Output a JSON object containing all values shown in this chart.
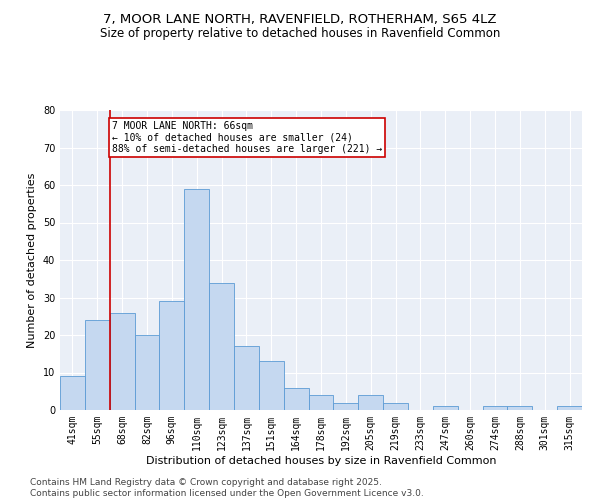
{
  "title1": "7, MOOR LANE NORTH, RAVENFIELD, ROTHERHAM, S65 4LZ",
  "title2": "Size of property relative to detached houses in Ravenfield Common",
  "xlabel": "Distribution of detached houses by size in Ravenfield Common",
  "ylabel": "Number of detached properties",
  "categories": [
    "41sqm",
    "55sqm",
    "68sqm",
    "82sqm",
    "96sqm",
    "110sqm",
    "123sqm",
    "137sqm",
    "151sqm",
    "164sqm",
    "178sqm",
    "192sqm",
    "205sqm",
    "219sqm",
    "233sqm",
    "247sqm",
    "260sqm",
    "274sqm",
    "288sqm",
    "301sqm",
    "315sqm"
  ],
  "values": [
    9,
    24,
    26,
    20,
    29,
    59,
    34,
    17,
    13,
    6,
    4,
    2,
    4,
    2,
    0,
    1,
    0,
    1,
    1,
    0,
    1
  ],
  "bar_color": "#c5d8f0",
  "bar_edge_color": "#5b9bd5",
  "annotation_text_line1": "7 MOOR LANE NORTH: 66sqm",
  "annotation_text_line2": "← 10% of detached houses are smaller (24)",
  "annotation_text_line3": "88% of semi-detached houses are larger (221) →",
  "annotation_box_color": "#ffffff",
  "annotation_box_edge": "#cc0000",
  "vline_x": 1.5,
  "vline_color": "#cc0000",
  "ylim": [
    0,
    80
  ],
  "yticks": [
    0,
    10,
    20,
    30,
    40,
    50,
    60,
    70,
    80
  ],
  "background_color": "#eaeff7",
  "footer": "Contains HM Land Registry data © Crown copyright and database right 2025.\nContains public sector information licensed under the Open Government Licence v3.0.",
  "title_fontsize": 9.5,
  "subtitle_fontsize": 8.5,
  "axis_label_fontsize": 8,
  "tick_fontsize": 7,
  "annotation_fontsize": 7,
  "footer_fontsize": 6.5
}
